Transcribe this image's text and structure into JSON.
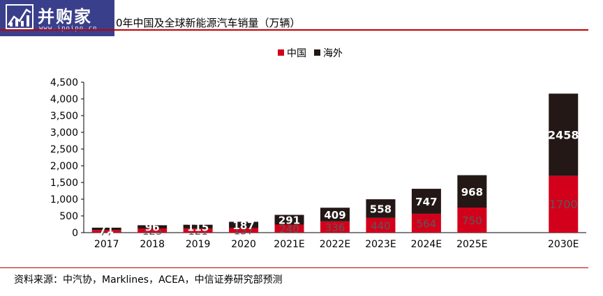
{
  "header": {
    "logo_text": "并购家",
    "logo_url": "www.ipoipo.cn",
    "title": "0年中国及全球新能源汽车销量（万辆）"
  },
  "footer": {
    "source": "资料来源：中汽协，Marklines，ACEA，中信证券研究部预测"
  },
  "colors": {
    "china": "#d3001b",
    "overseas": "#231815",
    "accent": "#c00000"
  },
  "chart_data": {
    "type": "bar",
    "stacked": true,
    "categories": [
      "2017",
      "2018",
      "2019",
      "2020",
      "2021E",
      "2022E",
      "2023E",
      "2024E",
      "2025E",
      "",
      "2030E"
    ],
    "series": [
      {
        "name": "中国",
        "values": [
          77,
          125,
          121,
          137,
          240,
          336,
          440,
          564,
          750,
          null,
          1700
        ],
        "labels": [
          "77",
          "125",
          "121",
          "137",
          "240",
          "336",
          "440",
          "564",
          "750",
          "",
          "1700"
        ]
      },
      {
        "name": "海外",
        "values": [
          71,
          96,
          115,
          187,
          291,
          409,
          558,
          747,
          968,
          null,
          2458
        ],
        "labels": [
          "71",
          "96",
          "115",
          "187",
          "291",
          "409",
          "558",
          "747",
          "968",
          "",
          "2458"
        ]
      }
    ],
    "ylim": [
      0,
      4500
    ],
    "yticks": [
      0,
      500,
      1000,
      1500,
      2000,
      2500,
      3000,
      3500,
      4000,
      4500
    ],
    "ytick_labels": [
      "0",
      "500",
      "1,000",
      "1,500",
      "2,000",
      "2,500",
      "3,000",
      "3,500",
      "4,000",
      "4,500"
    ],
    "legend": "top-center",
    "grid": false
  }
}
